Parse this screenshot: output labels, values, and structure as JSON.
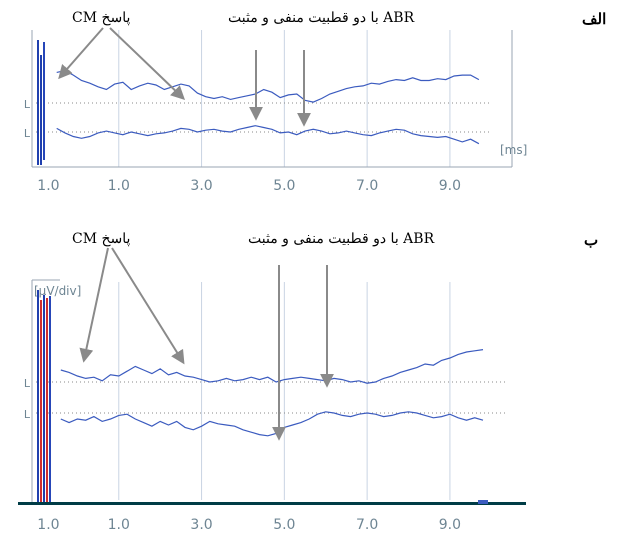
{
  "figure": {
    "panel_a_letter": "الف",
    "panel_b_letter": "ب",
    "cm_label_top": "پاسخ CM",
    "abr_label_top": "ABR با دو قطبیت منفی و مثبت",
    "cm_label_bottom": "پاسخ CM",
    "abr_label_bottom": "ABR با دو قطبیت منفی و مثبت",
    "unit_ms": "[ms]",
    "unit_uv": "[µV/div]",
    "marker_char": "L"
  },
  "colors": {
    "trace": "#3b5bbf",
    "stim_dark": "#1f3fae",
    "stim_red": "#d03030",
    "grid": "#c9d4e3",
    "dotted": "#8a8a8a",
    "arrow": "#8a8a8a",
    "axis": "#003c46",
    "tick_text": "#6e8593"
  },
  "chart_data": [
    {
      "type": "line",
      "title": "",
      "xlabel": "[ms]",
      "ylabel": "",
      "x_ticks": [
        "1.0",
        "1.0",
        "3.0",
        "5.0",
        "7.0",
        "9.0"
      ],
      "xlim": [
        -1,
        10.5
      ],
      "ylim": [
        -1,
        1
      ],
      "grid": true,
      "series": [
        {
          "x": [
            -0.5,
            -0.3,
            -0.1,
            0.1,
            0.3,
            0.5,
            0.7,
            0.9,
            1.1,
            1.3,
            1.5,
            1.7,
            1.9,
            2.1,
            2.3,
            2.5,
            2.7,
            2.9,
            3.1,
            3.3,
            3.5,
            3.7,
            3.9,
            4.1,
            4.3,
            4.5,
            4.7,
            4.9,
            5.1,
            5.3,
            5.5,
            5.7,
            5.9,
            6.1,
            6.3,
            6.5,
            6.7,
            6.9,
            7.1,
            7.3,
            7.5,
            7.7,
            7.9,
            8.1,
            8.3,
            8.5,
            8.7,
            8.9,
            9.1,
            9.3,
            9.5,
            9.7
          ],
          "y": [
            0.68,
            0.72,
            0.62,
            0.5,
            0.44,
            0.36,
            0.3,
            0.42,
            0.46,
            0.3,
            0.38,
            0.44,
            0.4,
            0.3,
            0.36,
            0.42,
            0.38,
            0.22,
            0.14,
            0.1,
            0.14,
            0.08,
            0.12,
            0.16,
            0.2,
            0.3,
            0.24,
            0.12,
            0.18,
            0.2,
            0.06,
            0.02,
            0.1,
            0.2,
            0.26,
            0.32,
            0.36,
            0.38,
            0.44,
            0.42,
            0.48,
            0.52,
            0.5,
            0.56,
            0.5,
            0.5,
            0.54,
            0.52,
            0.6,
            0.62,
            0.62,
            0.52
          ]
        },
        {
          "x": [
            -0.5,
            -0.3,
            -0.1,
            0.1,
            0.3,
            0.5,
            0.7,
            0.9,
            1.1,
            1.3,
            1.5,
            1.7,
            1.9,
            2.1,
            2.3,
            2.5,
            2.7,
            2.9,
            3.1,
            3.3,
            3.5,
            3.7,
            3.9,
            4.1,
            4.3,
            4.5,
            4.7,
            4.9,
            5.1,
            5.3,
            5.5,
            5.7,
            5.9,
            6.1,
            6.3,
            6.5,
            6.7,
            6.9,
            7.1,
            7.3,
            7.5,
            7.7,
            7.9,
            8.1,
            8.3,
            8.5,
            8.7,
            8.9,
            9.1,
            9.3,
            9.5,
            9.7
          ],
          "y": [
            0.08,
            -0.02,
            -0.1,
            -0.14,
            -0.1,
            -0.02,
            0.02,
            -0.02,
            -0.06,
            0.0,
            -0.04,
            -0.08,
            -0.04,
            -0.02,
            0.02,
            0.08,
            0.06,
            0.0,
            0.04,
            0.06,
            0.02,
            0.0,
            0.06,
            0.1,
            0.14,
            0.1,
            0.06,
            -0.02,
            0.0,
            -0.06,
            0.02,
            0.06,
            0.02,
            -0.04,
            -0.02,
            0.02,
            -0.02,
            -0.06,
            -0.08,
            -0.02,
            0.02,
            0.06,
            0.04,
            -0.04,
            -0.08,
            -0.1,
            -0.12,
            -0.1,
            -0.16,
            -0.22,
            -0.16,
            -0.26
          ]
        }
      ]
    },
    {
      "type": "line",
      "title": "",
      "xlabel": "",
      "ylabel": "[µV/div]",
      "x_ticks": [
        "1.0",
        "1.0",
        "3.0",
        "5.0",
        "7.0",
        "9.0"
      ],
      "xlim": [
        -1,
        10.5
      ],
      "ylim": [
        -1,
        1
      ],
      "grid": true,
      "series": [
        {
          "x": [
            -0.4,
            -0.2,
            0.0,
            0.2,
            0.4,
            0.6,
            0.8,
            1.0,
            1.2,
            1.4,
            1.6,
            1.8,
            2.0,
            2.2,
            2.4,
            2.6,
            2.8,
            3.0,
            3.2,
            3.4,
            3.6,
            3.8,
            4.0,
            4.2,
            4.4,
            4.6,
            4.8,
            5.0,
            5.2,
            5.4,
            5.6,
            5.8,
            6.0,
            6.2,
            6.4,
            6.6,
            6.8,
            7.0,
            7.2,
            7.4,
            7.6,
            7.8,
            8.0,
            8.2,
            8.4,
            8.6,
            8.8,
            9.0,
            9.2,
            9.4,
            9.6,
            9.8
          ],
          "y": [
            0.2,
            0.16,
            0.1,
            0.06,
            0.08,
            0.02,
            0.12,
            0.1,
            0.18,
            0.26,
            0.2,
            0.14,
            0.22,
            0.12,
            0.16,
            0.1,
            0.08,
            0.04,
            0.0,
            0.02,
            0.06,
            0.02,
            0.04,
            0.08,
            0.04,
            0.08,
            0.0,
            0.04,
            0.06,
            0.08,
            0.06,
            0.04,
            0.02,
            0.06,
            0.04,
            0.0,
            0.02,
            -0.02,
            0.0,
            0.06,
            0.1,
            0.16,
            0.2,
            0.24,
            0.3,
            0.28,
            0.36,
            0.4,
            0.46,
            0.5,
            0.52,
            0.54
          ]
        },
        {
          "x": [
            -0.4,
            -0.2,
            0.0,
            0.2,
            0.4,
            0.6,
            0.8,
            1.0,
            1.2,
            1.4,
            1.6,
            1.8,
            2.0,
            2.2,
            2.4,
            2.6,
            2.8,
            3.0,
            3.2,
            3.4,
            3.6,
            3.8,
            4.0,
            4.2,
            4.4,
            4.6,
            4.8,
            5.0,
            5.2,
            5.4,
            5.6,
            5.8,
            6.0,
            6.2,
            6.4,
            6.6,
            6.8,
            7.0,
            7.2,
            7.4,
            7.6,
            7.8,
            8.0,
            8.2,
            8.4,
            8.6,
            8.8,
            9.0,
            9.2,
            9.4,
            9.6,
            9.8
          ],
          "y": [
            -0.1,
            -0.16,
            -0.1,
            -0.12,
            -0.06,
            -0.14,
            -0.1,
            -0.04,
            -0.02,
            -0.1,
            -0.16,
            -0.22,
            -0.14,
            -0.2,
            -0.14,
            -0.24,
            -0.28,
            -0.22,
            -0.14,
            -0.18,
            -0.2,
            -0.22,
            -0.28,
            -0.32,
            -0.36,
            -0.38,
            -0.34,
            -0.24,
            -0.2,
            -0.16,
            -0.1,
            -0.02,
            0.02,
            0.0,
            -0.04,
            -0.06,
            -0.02,
            0.0,
            -0.02,
            -0.06,
            -0.04,
            0.0,
            0.02,
            0.0,
            -0.04,
            -0.08,
            -0.06,
            -0.02,
            -0.08,
            -0.12,
            -0.08,
            -0.12
          ]
        }
      ]
    }
  ]
}
